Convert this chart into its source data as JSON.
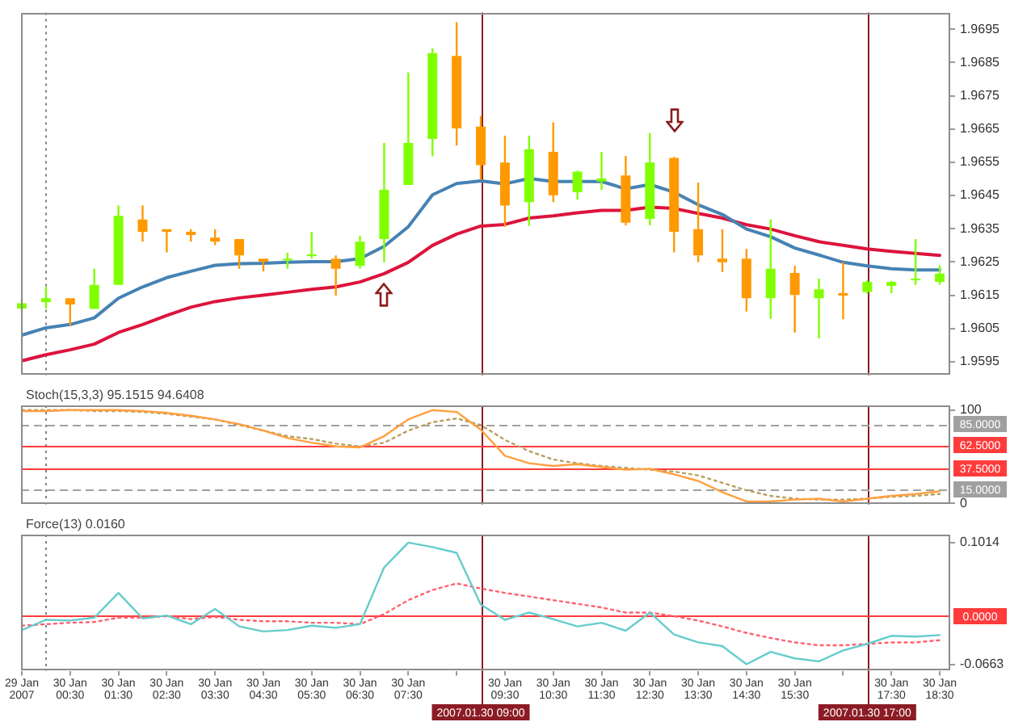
{
  "chart_data": [
    {
      "type": "candlestick",
      "x": [
        "2007-01-29T23:30",
        "2007-01-30T00:00",
        "2007-01-30T00:30",
        "2007-01-30T01:00",
        "2007-01-30T01:30",
        "2007-01-30T02:00",
        "2007-01-30T02:30",
        "2007-01-30T03:00",
        "2007-01-30T03:30",
        "2007-01-30T04:00",
        "2007-01-30T04:30",
        "2007-01-30T05:00",
        "2007-01-30T05:30",
        "2007-01-30T06:00",
        "2007-01-30T06:30",
        "2007-01-30T07:00",
        "2007-01-30T07:30",
        "2007-01-30T08:00",
        "2007-01-30T08:30",
        "2007-01-30T09:00",
        "2007-01-30T09:30",
        "2007-01-30T10:00",
        "2007-01-30T10:30",
        "2007-01-30T11:00",
        "2007-01-30T11:30",
        "2007-01-30T12:00",
        "2007-01-30T12:30",
        "2007-01-30T13:00",
        "2007-01-30T13:30",
        "2007-01-30T14:00",
        "2007-01-30T14:30",
        "2007-01-30T15:00",
        "2007-01-30T15:30",
        "2007-01-30T16:00",
        "2007-01-30T16:30",
        "2007-01-30T17:00",
        "2007-01-30T17:30",
        "2007-01-30T18:00",
        "2007-01-30T18:30"
      ],
      "ohlc": [
        [
          1.9611,
          1.9614,
          1.961,
          1.96126
        ],
        [
          1.96129,
          1.96175,
          1.96111,
          1.96141
        ],
        [
          1.96141,
          1.96141,
          1.96059,
          1.96122
        ],
        [
          1.96109,
          1.9623,
          1.96109,
          1.96181
        ],
        [
          1.96181,
          1.9642,
          1.96181,
          1.96389
        ],
        [
          1.96378,
          1.9642,
          1.96311,
          1.96341
        ],
        [
          1.96349,
          1.96349,
          1.96279,
          1.96341
        ],
        [
          1.96341,
          1.96349,
          1.96311,
          1.96331
        ],
        [
          1.96323,
          1.96349,
          1.96301,
          1.96311
        ],
        [
          1.96319,
          1.96319,
          1.9623,
          1.9627
        ],
        [
          1.9626,
          1.9626,
          1.96222,
          1.96251
        ],
        [
          1.96255,
          1.96278,
          1.9623,
          1.9626
        ],
        [
          1.9627,
          1.96341,
          1.9626,
          1.96273
        ],
        [
          1.9626,
          1.9627,
          1.96149,
          1.9623
        ],
        [
          1.96238,
          1.96329,
          1.9623,
          1.96311
        ],
        [
          1.96319,
          1.96608,
          1.96249,
          1.96467
        ],
        [
          1.96482,
          1.9682,
          1.96482,
          1.96608
        ],
        [
          1.9662,
          1.96892,
          1.96568,
          1.96878
        ],
        [
          1.9687,
          1.96971,
          1.966,
          1.96652
        ],
        [
          1.96657,
          1.96689,
          1.96497,
          1.96541
        ],
        [
          1.96549,
          1.9663,
          1.96356,
          1.9642
        ],
        [
          1.9643,
          1.9663,
          1.96359,
          1.96589
        ],
        [
          1.96581,
          1.9667,
          1.9643,
          1.96451
        ],
        [
          1.9646,
          1.96525,
          1.96438,
          1.96522
        ],
        [
          1.96492,
          1.96581,
          1.96467,
          1.96501
        ],
        [
          1.9651,
          1.96569,
          1.9636,
          1.96368
        ],
        [
          1.9638,
          1.96638,
          1.9636,
          1.96549
        ],
        [
          1.96563,
          1.96566,
          1.96279,
          1.96341
        ],
        [
          1.96349,
          1.96489,
          1.96249,
          1.9627
        ],
        [
          1.9626,
          1.96349,
          1.9622,
          1.96249
        ],
        [
          1.9626,
          1.96289,
          1.96101,
          1.96141
        ],
        [
          1.96141,
          1.96378,
          1.96079,
          1.9623
        ],
        [
          1.96217,
          1.96238,
          1.96038,
          1.96151
        ],
        [
          1.96141,
          1.962,
          1.9602,
          1.96168
        ],
        [
          1.96156,
          1.96249,
          1.96078,
          1.96149
        ],
        [
          1.9616,
          1.96196,
          1.96154,
          1.9619
        ],
        [
          1.96178,
          1.96193,
          1.96156,
          1.9619
        ],
        [
          1.96198,
          1.96319,
          1.96181,
          1.962
        ],
        [
          1.9619,
          1.9624,
          1.96181,
          1.96215
        ]
      ],
      "colors": [
        "#80ff00",
        "#80ff00",
        "#ff9900",
        "#80ff00",
        "#80ff00",
        "#ff9900",
        "#ff9900",
        "#ff9900",
        "#ff9900",
        "#ff9900",
        "#ff9900",
        "#80ff00",
        "#80ff00",
        "#ff9900",
        "#80ff00",
        "#80ff00",
        "#80ff00",
        "#80ff00",
        "#ff9900",
        "#ff9900",
        "#ff9900",
        "#80ff00",
        "#ff9900",
        "#80ff00",
        "#80ff00",
        "#ff9900",
        "#80ff00",
        "#ff9900",
        "#ff9900",
        "#ff9900",
        "#ff9900",
        "#80ff00",
        "#ff9900",
        "#80ff00",
        "#ff9900",
        "#80ff00",
        "#80ff00",
        "#80ff00",
        "#80ff00"
      ],
      "series": [
        {
          "type": "line",
          "color": "#4682b4",
          "values": [
            1.9603,
            1.96052,
            1.96062,
            1.96082,
            1.96141,
            1.96175,
            1.96203,
            1.96222,
            1.9624,
            1.96245,
            1.96246,
            1.96249,
            1.96251,
            1.96251,
            1.9626,
            1.96297,
            1.96356,
            1.96452,
            1.96486,
            1.96494,
            1.96485,
            1.96501,
            1.96492,
            1.96492,
            1.96492,
            1.9647,
            1.96483,
            1.9646,
            1.96422,
            1.96393,
            1.96349,
            1.96326,
            1.96292,
            1.96271,
            1.96249,
            1.96238,
            1.9623,
            1.96226,
            1.96226
          ]
        },
        {
          "type": "line",
          "color": "#dc143c",
          "values": [
            1.95953,
            1.95971,
            1.95986,
            1.96003,
            1.96038,
            1.96062,
            1.96089,
            1.96114,
            1.96131,
            1.96142,
            1.9615,
            1.96159,
            1.96168,
            1.96175,
            1.9619,
            1.96215,
            1.96249,
            1.963,
            1.96334,
            1.96358,
            1.96363,
            1.96382,
            1.96389,
            1.96398,
            1.96405,
            1.96405,
            1.96415,
            1.96411,
            1.96396,
            1.96382,
            1.96362,
            1.96349,
            1.96329,
            1.96311,
            1.963,
            1.96289,
            1.96282,
            1.96276,
            1.9627
          ]
        }
      ],
      "xlim": [
        "2007-01-29T23:29",
        "2007-01-30T18:43"
      ],
      "ylim": [
        1.9591,
        1.97
      ],
      "yticks": [
        1.9595,
        1.9605,
        1.9615,
        1.9625,
        1.9635,
        1.9645,
        1.9655,
        1.9665,
        1.9675,
        1.9685,
        1.9695
      ],
      "ref_lines": [
        {
          "axis": "x",
          "value": "2007-01-30T00:00",
          "color": "#808080",
          "line_style": "dotted"
        },
        {
          "axis": "x",
          "value": "2007-01-30T09:00",
          "color": "#8b1c24"
        },
        {
          "axis": "x",
          "value": "2007-01-30T17:00",
          "color": "#8b1c24"
        }
      ],
      "tick_labels": "y"
    },
    {
      "type": "line",
      "title": "Stoch(15,3,3) 95.1515 94.6408",
      "x": [
        "2007-01-29T23:30",
        "2007-01-30T00:00",
        "2007-01-30T00:30",
        "2007-01-30T01:00",
        "2007-01-30T01:30",
        "2007-01-30T02:00",
        "2007-01-30T02:30",
        "2007-01-30T03:00",
        "2007-01-30T03:30",
        "2007-01-30T04:00",
        "2007-01-30T04:30",
        "2007-01-30T05:00",
        "2007-01-30T05:30",
        "2007-01-30T06:00",
        "2007-01-30T06:30",
        "2007-01-30T07:00",
        "2007-01-30T07:30",
        "2007-01-30T08:00",
        "2007-01-30T08:30",
        "2007-01-30T09:00",
        "2007-01-30T09:30",
        "2007-01-30T10:00",
        "2007-01-30T10:30",
        "2007-01-30T11:00",
        "2007-01-30T11:30",
        "2007-01-30T12:00",
        "2007-01-30T12:30",
        "2007-01-30T13:00",
        "2007-01-30T13:30",
        "2007-01-30T14:00",
        "2007-01-30T14:30",
        "2007-01-30T15:00",
        "2007-01-30T15:30",
        "2007-01-30T16:00",
        "2007-01-30T16:30",
        "2007-01-30T17:00",
        "2007-01-30T17:30",
        "2007-01-30T18:00",
        "2007-01-30T18:30"
      ],
      "series": [
        {
          "color": "#ffa040",
          "values": [
            99,
            99,
            100,
            100,
            100,
            99,
            97,
            94,
            90,
            85,
            78,
            70,
            65,
            61,
            60,
            72,
            90,
            100,
            98,
            79,
            51,
            43,
            40,
            42,
            39,
            36,
            37,
            31,
            24,
            12,
            2,
            2,
            4,
            5,
            2,
            5,
            8,
            10,
            13
          ]
        },
        {
          "color": "#b8a060",
          "line_style": "dotted",
          "values": [
            100,
            100,
            100,
            99,
            99,
            98,
            96,
            93,
            90,
            84,
            78,
            72,
            69,
            64,
            61,
            65,
            78,
            87,
            91,
            84,
            68,
            56,
            47,
            43,
            40,
            38,
            36,
            34,
            30,
            22,
            14,
            8,
            5,
            4,
            4,
            5,
            7,
            8,
            10
          ]
        }
      ],
      "xlim": [
        "2007-01-29T23:29",
        "2007-01-30T18:43"
      ],
      "ylim": [
        -1,
        105
      ],
      "yticks": [
        0,
        100
      ],
      "ref_lines": [
        {
          "axis": "x",
          "value": "2007-01-30T00:00",
          "color": "#808080",
          "line_style": "dotted"
        },
        {
          "axis": "x",
          "value": "2007-01-30T09:00",
          "color": "#8b1c24"
        },
        {
          "axis": "x",
          "value": "2007-01-30T17:00",
          "color": "#8b1c24"
        },
        {
          "axis": "y",
          "value": 85,
          "label": "85.0000",
          "color": "#a0a0a0",
          "line_style": "dashed"
        },
        {
          "axis": "y",
          "value": 62.5,
          "label": "62.5000",
          "color": "#ff3b3b"
        },
        {
          "axis": "y",
          "value": 37.5,
          "label": "37.5000",
          "color": "#ff3b3b"
        },
        {
          "axis": "y",
          "value": 15,
          "label": "15.0000",
          "color": "#a0a0a0",
          "line_style": "dashed"
        }
      ],
      "tick_labels": "y"
    },
    {
      "type": "line",
      "title": "Force(13) 0.0160",
      "x": [
        "2007-01-29T23:30",
        "2007-01-30T00:00",
        "2007-01-30T00:30",
        "2007-01-30T01:00",
        "2007-01-30T01:30",
        "2007-01-30T02:00",
        "2007-01-30T02:30",
        "2007-01-30T03:00",
        "2007-01-30T03:30",
        "2007-01-30T04:00",
        "2007-01-30T04:30",
        "2007-01-30T05:00",
        "2007-01-30T05:30",
        "2007-01-30T06:00",
        "2007-01-30T06:30",
        "2007-01-30T07:00",
        "2007-01-30T07:30",
        "2007-01-30T08:00",
        "2007-01-30T08:30",
        "2007-01-30T09:00",
        "2007-01-30T09:30",
        "2007-01-30T10:00",
        "2007-01-30T10:30",
        "2007-01-30T11:00",
        "2007-01-30T11:30",
        "2007-01-30T12:00",
        "2007-01-30T12:30",
        "2007-01-30T13:00",
        "2007-01-30T13:30",
        "2007-01-30T14:00",
        "2007-01-30T14:30",
        "2007-01-30T15:00",
        "2007-01-30T15:30",
        "2007-01-30T16:00",
        "2007-01-30T16:30",
        "2007-01-30T17:00",
        "2007-01-30T17:30",
        "2007-01-30T18:00",
        "2007-01-30T18:30"
      ],
      "series": [
        {
          "color": "#66cccc",
          "values": [
            -0.019,
            -0.005,
            -0.006,
            -0.002,
            0.032,
            -0.003,
            0.001,
            -0.011,
            0.01,
            -0.014,
            -0.021,
            -0.019,
            -0.013,
            -0.016,
            -0.011,
            0.067,
            0.101,
            0.095,
            0.087,
            0.016,
            -0.005,
            0.005,
            -0.004,
            -0.014,
            -0.009,
            -0.02,
            0.005,
            -0.025,
            -0.036,
            -0.041,
            -0.066,
            -0.049,
            -0.058,
            -0.062,
            -0.047,
            -0.038,
            -0.027,
            -0.028,
            -0.026
          ]
        },
        {
          "color": "#ff6070",
          "line_style": "dotted",
          "values": [
            -0.013,
            -0.011,
            -0.009,
            -0.008,
            -0.002,
            -0.002,
            0,
            -0.004,
            -0.001,
            -0.005,
            -0.007,
            -0.007,
            -0.009,
            -0.009,
            -0.011,
            0.003,
            0.022,
            0.036,
            0.045,
            0.038,
            0.032,
            0.027,
            0.022,
            0.017,
            0.012,
            0.005,
            0.005,
            0,
            -0.006,
            -0.014,
            -0.023,
            -0.03,
            -0.036,
            -0.04,
            -0.04,
            -0.038,
            -0.036,
            -0.036,
            -0.033
          ]
        }
      ],
      "xlim": [
        "2007-01-29T23:29",
        "2007-01-30T18:43"
      ],
      "ylim": [
        -0.075,
        0.112
      ],
      "yticks": [
        -0.0663,
        0.1014
      ],
      "xticks": [
        {
          "value": "2007-01-29T23:30",
          "label": "29 Jan 2007"
        },
        {
          "value": "2007-01-30T00:30",
          "label": "30 Jan 00:30"
        },
        {
          "value": "2007-01-30T01:30",
          "label": "30 Jan 01:30"
        },
        {
          "value": "2007-01-30T02:30",
          "label": "30 Jan 02:30"
        },
        {
          "value": "2007-01-30T03:30",
          "label": "30 Jan 03:30"
        },
        {
          "value": "2007-01-30T04:30",
          "label": "30 Jan 04:30"
        },
        {
          "value": "2007-01-30T05:30",
          "label": "30 Jan 05:30"
        },
        {
          "value": "2007-01-30T06:30",
          "label": "30 Jan 06:30"
        },
        {
          "value": "2007-01-30T07:30",
          "label": "30 Jan 07:30"
        },
        {
          "value": "2007-01-30T08:30",
          "label": null
        },
        {
          "value": "2007-01-30T09:30",
          "label": "30 Jan 09:30"
        },
        {
          "value": "2007-01-30T10:30",
          "label": "30 Jan 10:30"
        },
        {
          "value": "2007-01-30T11:30",
          "label": "30 Jan 11:30"
        },
        {
          "value": "2007-01-30T12:30",
          "label": "30 Jan 12:30"
        },
        {
          "value": "2007-01-30T13:30",
          "label": "30 Jan 13:30"
        },
        {
          "value": "2007-01-30T14:30",
          "label": "30 Jan 14:30"
        },
        {
          "value": "2007-01-30T15:30",
          "label": "30 Jan 15:30"
        },
        {
          "value": "2007-01-30T16:30",
          "label": null
        },
        {
          "value": "2007-01-30T17:30",
          "label": "30 Jan 17:30"
        },
        {
          "value": "2007-01-30T18:30",
          "label": "30 Jan 18:30"
        }
      ],
      "ref_lines": [
        {
          "axis": "x",
          "value": "2007-01-30T00:00",
          "color": "#808080",
          "line_style": "dotted"
        },
        {
          "axis": "x",
          "value": "2007-01-30T09:00",
          "label": "2007.01.30 09:00",
          "color": "#8b1c24"
        },
        {
          "axis": "x",
          "value": "2007-01-30T17:00",
          "label": "2007.01.30 17:00",
          "color": "#8b1c24"
        },
        {
          "axis": "y",
          "value": 0,
          "label": "0.0000",
          "color": "#ff3b3b"
        }
      ]
    }
  ]
}
